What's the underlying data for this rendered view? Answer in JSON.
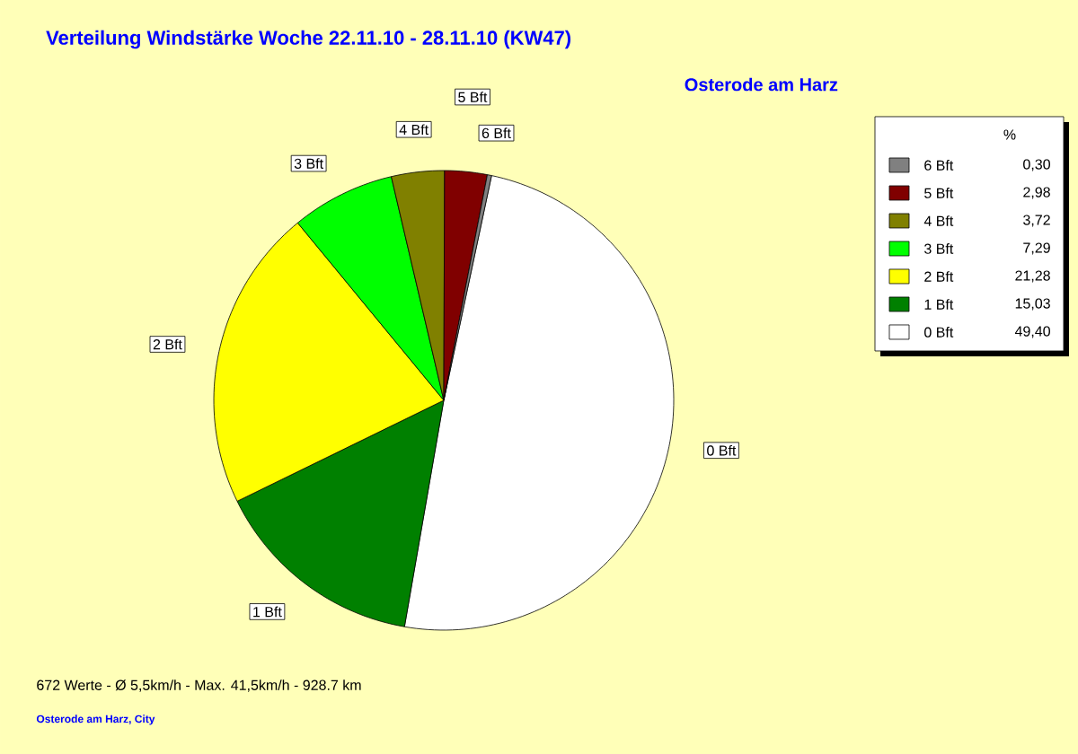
{
  "chart_data": {
    "type": "pie",
    "title": "Verteilung Windstärke  Woche 22.11.10 - 28.11.10 (KW47)",
    "subtitle": "Osterode am Harz",
    "legend_title": "%",
    "legend": "right",
    "categories": [
      "0 Bft",
      "1 Bft",
      "2 Bft",
      "3 Bft",
      "4 Bft",
      "5 Bft",
      "6 Bft"
    ],
    "values": [
      49.4,
      15.03,
      21.28,
      7.29,
      3.72,
      2.98,
      0.3
    ],
    "value_labels": [
      "49,40",
      "15,03",
      "21,28",
      "7,29",
      "3,72",
      "2,98",
      "0,30"
    ],
    "colors": [
      "#ffffff",
      "#008000",
      "#ffff00",
      "#00ff00",
      "#808000",
      "#800000",
      "#808080"
    ],
    "annotations": [
      "672 Werte   -   Ø 5,5km/h  -  Max. 41,5km/h   -   928.7 km",
      "Osterode am Harz, City"
    ]
  }
}
